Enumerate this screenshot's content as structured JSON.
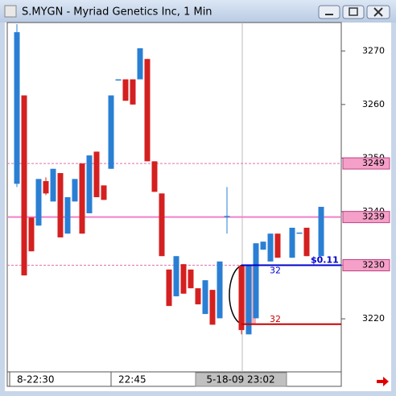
{
  "window_title": "S.MYGN - Myriad Genetics Inc, 1 Min",
  "chart_data": {
    "type": "candlestick",
    "categories": [
      "8-22:30",
      null,
      null,
      null,
      null,
      null,
      null,
      null,
      null,
      null,
      null,
      null,
      null,
      null,
      "22:45",
      null,
      null,
      null,
      null,
      null,
      null,
      null,
      null,
      null,
      null,
      null,
      null,
      null,
      null,
      null,
      null,
      "5-18-09 23:02",
      null,
      null,
      null,
      null,
      null,
      null,
      null,
      null,
      null,
      null,
      null
    ],
    "open": [
      3245.2,
      3261.7,
      3238.9,
      3237.4,
      3245.7,
      3241.9,
      3247.2,
      3235.9,
      3241.9,
      3249,
      3239.7,
      3251.2,
      3244.9,
      3248,
      3264.7,
      3264.7,
      3264.7,
      3264.7,
      3268.5,
      3249.4,
      3243.4,
      3229.2,
      3224.2,
      3230.2,
      3229.2,
      3225.7,
      3220.9,
      3225.4,
      3220.1,
      3239.2,
      null,
      3229.9,
      3217.1,
      3220.1,
      3232.9,
      3230.7,
      3235.9,
      null,
      3231.4,
      3236.1,
      3237,
      null,
      3231.7
    ],
    "high": [
      3275,
      3261.7,
      3238.9,
      3246.1,
      3246.4,
      3248,
      3247.2,
      3242.7,
      3246.1,
      3249,
      3250.5,
      3251.2,
      3244.9,
      3261.7,
      3264.7,
      3264.7,
      3264.7,
      3270.5,
      3268.5,
      3249.4,
      3243.4,
      3229.2,
      3231.7,
      3230.2,
      3229.2,
      3225.7,
      3227.2,
      3225.4,
      3230.7,
      3244.6,
      null,
      3229.9,
      3230,
      3234.1,
      3234.4,
      3235.9,
      3235.9,
      null,
      3237,
      3236.1,
      3237,
      null,
      3240.9
    ],
    "low": [
      3244.6,
      3228.1,
      3232.6,
      3237.4,
      3243.1,
      3241.9,
      3235.2,
      3235.9,
      3241.9,
      3235.9,
      3239.7,
      3242.7,
      3242.2,
      3248,
      3264.7,
      3260.7,
      3260,
      3264.7,
      3249.4,
      3243.7,
      3231.7,
      3222.4,
      3224.2,
      3224.7,
      3225.7,
      3222.7,
      3220.9,
      3218.9,
      3220.1,
      3235.9,
      null,
      3217.1,
      3217.1,
      3220.1,
      3232.9,
      3230.7,
      3231.4,
      null,
      3231.4,
      3236.1,
      3231.7,
      null,
      3231.7
    ],
    "close": [
      3273.5,
      3228.1,
      3232.6,
      3246.1,
      3243.4,
      3248,
      3235.2,
      3242.7,
      3246.1,
      3235.9,
      3250.5,
      3242.7,
      3242.2,
      3261.7,
      3264.7,
      3260.7,
      3260,
      3270.5,
      3249.4,
      3243.7,
      3231.7,
      3222.4,
      3231.7,
      3224.7,
      3225.7,
      3222.7,
      3227.2,
      3218.9,
      3230.7,
      3239.2,
      null,
      3217.9,
      3229.9,
      3234.1,
      3234.4,
      3235.9,
      3231.4,
      null,
      3237,
      3236.1,
      3231.7,
      null,
      3240.9
    ],
    "up_color": "#2a7fd4",
    "down_color": "#d42020",
    "ylim": [
      3210.1,
      3275.3
    ],
    "yticks": [
      3220,
      3230,
      3240,
      3250,
      3260,
      3270
    ],
    "level_lines": [
      {
        "value": 3249,
        "color": "#e070b0",
        "dashed": true
      },
      {
        "value": 3239,
        "color": "#f080c8",
        "dashed": false
      },
      {
        "value": 3230,
        "color": "#e070b0",
        "dashed": true
      }
    ],
    "orders": [
      {
        "price": 3230,
        "quantity": 32,
        "color": "#0000cc"
      },
      {
        "price": 3219,
        "quantity": 32,
        "color": "#cc0000"
      }
    ],
    "pnl_label": "$0.11"
  }
}
